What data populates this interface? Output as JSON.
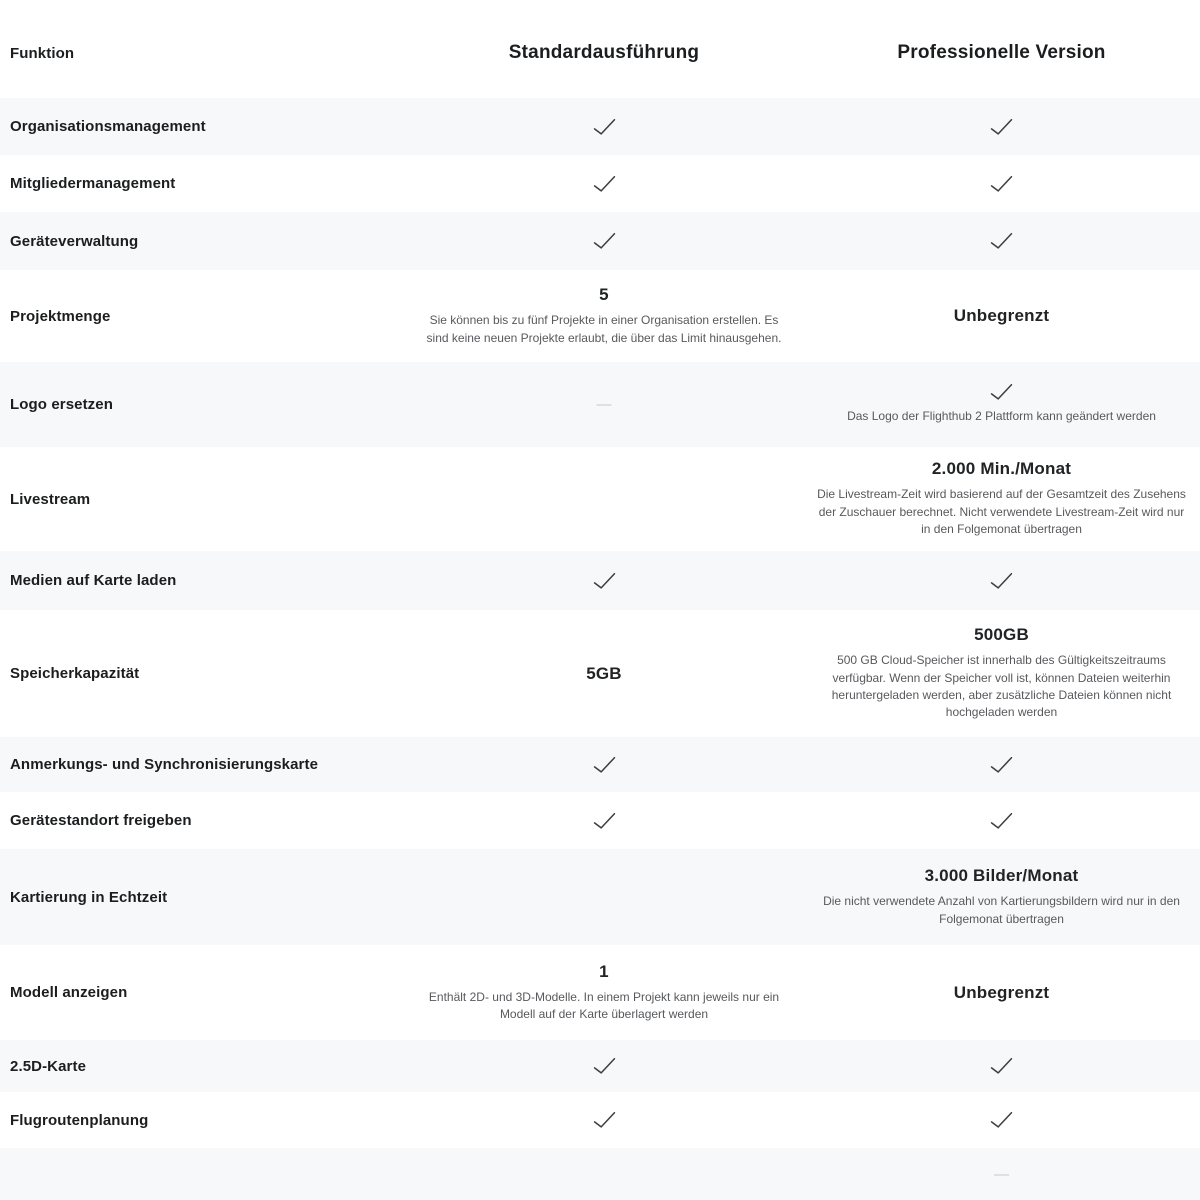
{
  "header": {
    "feature": "Funktion",
    "standard": "Standardausführung",
    "professional": "Professionelle Version"
  },
  "glyphs": {
    "dash": "—"
  },
  "icons": {
    "available": "check-icon",
    "unavailable": "dash-icon"
  },
  "colors": {
    "row_stripe": "#f7f8fa",
    "row_plain": "#ffffff",
    "check": "#3c3e40",
    "dash": "#c7c9cc",
    "heading_text": "#1b1d1f",
    "label_text": "#1b1d1f",
    "value_text": "#212325",
    "note_text": "#57595c"
  },
  "rows": [
    {
      "feature": "Organisationsmanagement",
      "standard": {
        "type": "check"
      },
      "professional": {
        "type": "check"
      }
    },
    {
      "feature": "Mitgliedermanagement",
      "standard": {
        "type": "check"
      },
      "professional": {
        "type": "check"
      }
    },
    {
      "feature": "Geräteverwaltung",
      "standard": {
        "type": "check"
      },
      "professional": {
        "type": "check"
      }
    },
    {
      "feature": "Projektmenge",
      "standard": {
        "type": "text",
        "value": "5",
        "note": "Sie können bis zu fünf Projekte in einer Organisation erstellen. Es sind keine neuen Projekte erlaubt, die über das Limit hinausgehen."
      },
      "professional": {
        "type": "text",
        "value": "Unbegrenzt"
      }
    },
    {
      "feature": "Logo ersetzen",
      "standard": {
        "type": "dash"
      },
      "professional": {
        "type": "check",
        "note": "Das Logo der Flighthub 2 Plattform kann geändert werden"
      }
    },
    {
      "feature": "Livestream",
      "standard": {
        "type": "empty"
      },
      "professional": {
        "type": "text",
        "value": "2.000 Min./Monat",
        "note": "Die Livestream-Zeit wird basierend auf der Gesamtzeit des Zusehens der Zuschauer berechnet. Nicht verwendete Livestream-Zeit wird nur in den Folgemonat übertragen"
      }
    },
    {
      "feature": "Medien auf Karte laden",
      "standard": {
        "type": "check"
      },
      "professional": {
        "type": "check"
      }
    },
    {
      "feature": "Speicherkapazität",
      "standard": {
        "type": "text",
        "value": "5GB"
      },
      "professional": {
        "type": "text",
        "value": "500GB",
        "note": "500 GB Cloud-Speicher ist innerhalb des Gültigkeitszeitraums verfügbar. Wenn der Speicher voll ist, können Dateien weiterhin heruntergeladen werden, aber zusätzliche Dateien können nicht hochgeladen werden"
      }
    },
    {
      "feature": "Anmerkungs- und Synchronisierungskarte",
      "standard": {
        "type": "check"
      },
      "professional": {
        "type": "check"
      }
    },
    {
      "feature": "Gerätestandort freigeben",
      "standard": {
        "type": "check"
      },
      "professional": {
        "type": "check"
      }
    },
    {
      "feature": "Kartierung in Echtzeit",
      "standard": {
        "type": "empty"
      },
      "professional": {
        "type": "text",
        "value": "3.000 Bilder/Monat",
        "note": "Die nicht verwendete Anzahl von Kartierungsbildern wird nur in den Folgemonat übertragen"
      }
    },
    {
      "feature": "Modell anzeigen",
      "standard": {
        "type": "text",
        "value": "1",
        "note": "Enthält 2D- und 3D-Modelle. In einem Projekt kann jeweils nur ein Modell auf der Karte überlagert werden"
      },
      "professional": {
        "type": "text",
        "value": "Unbegrenzt"
      }
    },
    {
      "feature": "2.5D-Karte",
      "standard": {
        "type": "check"
      },
      "professional": {
        "type": "check"
      }
    },
    {
      "feature": "Flugroutenplanung",
      "standard": {
        "type": "check"
      },
      "professional": {
        "type": "check"
      }
    },
    {
      "feature": "",
      "standard": {
        "type": "empty"
      },
      "professional": {
        "type": "dash"
      }
    }
  ]
}
